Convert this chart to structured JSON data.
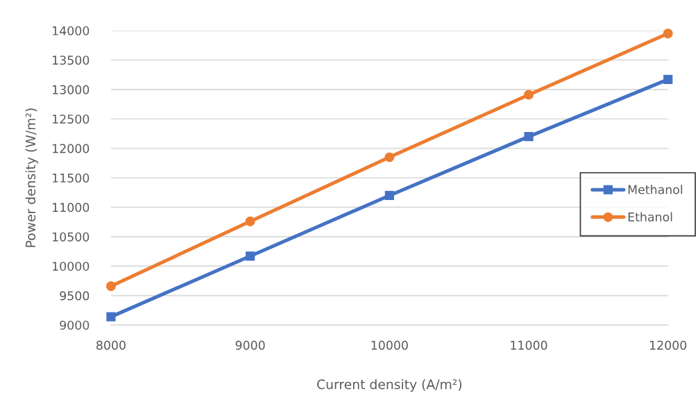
{
  "chart_data": {
    "type": "line",
    "xlabel": "Current density (A/m²)",
    "ylabel": "Power density (W/m²)",
    "x": [
      8000,
      9000,
      10000,
      11000,
      12000
    ],
    "xlim": [
      8000,
      12000
    ],
    "xticks": [
      8000,
      9000,
      10000,
      11000,
      12000
    ],
    "ylim": [
      9000,
      14000
    ],
    "yticks": [
      9000,
      9500,
      10000,
      10500,
      11000,
      11500,
      12000,
      12500,
      13000,
      13500,
      14000
    ],
    "grid": "y",
    "legend": "right",
    "line_style": "solid",
    "series": [
      {
        "name": "Methanol",
        "color": "#4472c4",
        "marker": "square",
        "values": [
          9140,
          10170,
          11200,
          12200,
          13170
        ]
      },
      {
        "name": "Ethanol",
        "color": "#ed7d31",
        "marker": "circle",
        "values": [
          9660,
          10760,
          11850,
          12910,
          13950
        ]
      }
    ]
  }
}
